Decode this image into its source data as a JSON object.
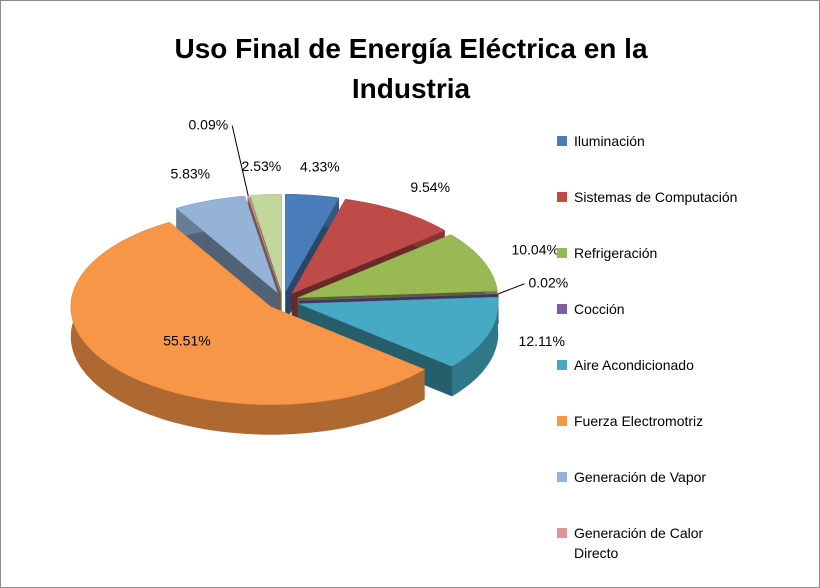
{
  "chart_data": {
    "type": "pie",
    "title": "Uso Final de Energía Eléctrica en la Industria",
    "categories": [
      "Iluminación",
      "Sistemas de Computación",
      "Refrigeración",
      "Cocción",
      "Aire Acondicionado",
      "Fuerza Electromotriz",
      "Generación de Vapor",
      "Generación de Calor Directo",
      null
    ],
    "values": [
      4.33,
      9.54,
      10.04,
      0.02,
      12.11,
      55.51,
      5.83,
      0.09,
      2.53
    ],
    "value_labels": [
      "4.33%",
      "9.54%",
      "10.04%",
      "0.02%",
      "12.11%",
      "55.51%",
      "5.83%",
      "0.09%",
      "2.53%"
    ],
    "colors": [
      "#4a7ebb",
      "#be4b48",
      "#98b954",
      "#7d5fa0",
      "#46aac5",
      "#f79646",
      "#95b3d7",
      "#d99694",
      "#c3d69b"
    ],
    "legend": "right"
  }
}
